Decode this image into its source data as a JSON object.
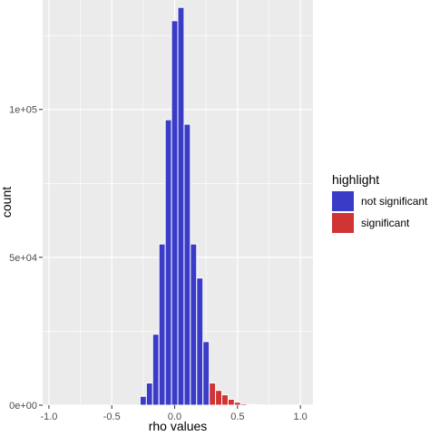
{
  "chart_data": {
    "type": "bar",
    "xlabel": "rho values",
    "ylabel": "count",
    "xlim": [
      -1.05,
      1.1
    ],
    "ylim": [
      0,
      137000
    ],
    "x_ticks": [
      {
        "value": -1.0,
        "label": "-1.0"
      },
      {
        "value": -0.5,
        "label": "-0.5"
      },
      {
        "value": 0.0,
        "label": "0.0"
      },
      {
        "value": 0.5,
        "label": "0.5"
      },
      {
        "value": 1.0,
        "label": "1.0"
      }
    ],
    "y_ticks": [
      {
        "value": 0,
        "label": "0e+00"
      },
      {
        "value": 50000,
        "label": "5e+04"
      },
      {
        "value": 100000,
        "label": "1e+05"
      }
    ],
    "bin_width": 0.05,
    "grid": true,
    "legend_position": "right",
    "legend": {
      "title": "highlight",
      "entries": [
        {
          "label": "not significant",
          "color": "#3A3CC8"
        },
        {
          "label": "significant",
          "color": "#D03434"
        }
      ]
    },
    "series": [
      {
        "name": "not significant",
        "color": "#3A3CC8",
        "x": [
          -0.25,
          -0.2,
          -0.15,
          -0.1,
          -0.05,
          0.0,
          0.05,
          0.1,
          0.15,
          0.2,
          0.25
        ],
        "values": [
          3000,
          7500,
          24000,
          54500,
          96500,
          130000,
          134500,
          95000,
          54500,
          43000,
          21500
        ]
      },
      {
        "name": "significant",
        "color": "#D03434",
        "x": [
          0.3,
          0.35,
          0.4,
          0.45,
          0.5,
          0.55,
          0.6,
          0.65,
          0.7
        ],
        "values": [
          7500,
          5000,
          3500,
          2000,
          1000,
          500,
          250,
          120,
          50
        ]
      }
    ]
  }
}
